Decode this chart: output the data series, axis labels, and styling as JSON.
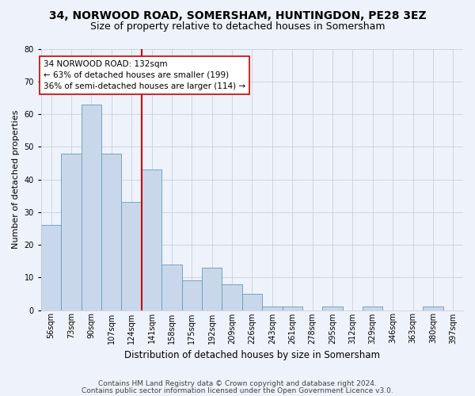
{
  "title_line1": "34, NORWOOD ROAD, SOMERSHAM, HUNTINGDON, PE28 3EZ",
  "title_line2": "Size of property relative to detached houses in Somersham",
  "xlabel": "Distribution of detached houses by size in Somersham",
  "ylabel": "Number of detached properties",
  "bar_labels": [
    "56sqm",
    "73sqm",
    "90sqm",
    "107sqm",
    "124sqm",
    "141sqm",
    "158sqm",
    "175sqm",
    "192sqm",
    "209sqm",
    "226sqm",
    "243sqm",
    "261sqm",
    "278sqm",
    "295sqm",
    "312sqm",
    "329sqm",
    "346sqm",
    "363sqm",
    "380sqm",
    "397sqm"
  ],
  "bar_values": [
    26,
    48,
    63,
    48,
    33,
    43,
    14,
    9,
    13,
    8,
    5,
    1,
    1,
    0,
    1,
    0,
    1,
    0,
    0,
    1,
    0
  ],
  "bar_color": "#c8d8ea",
  "bar_edge_color": "#6699bb",
  "vline_color": "#cc0000",
  "annotation_text": "34 NORWOOD ROAD: 132sqm\n← 63% of detached houses are smaller (199)\n36% of semi-detached houses are larger (114) →",
  "annotation_box_color": "white",
  "annotation_box_edge": "#cc0000",
  "ylim": [
    0,
    80
  ],
  "yticks": [
    0,
    10,
    20,
    30,
    40,
    50,
    60,
    70,
    80
  ],
  "grid_color": "#c8d0e0",
  "footer_line1": "Contains HM Land Registry data © Crown copyright and database right 2024.",
  "footer_line2": "Contains public sector information licensed under the Open Government Licence v3.0.",
  "bg_color": "#eef2fa",
  "title_fontsize": 10,
  "subtitle_fontsize": 9,
  "xlabel_fontsize": 8.5,
  "ylabel_fontsize": 8,
  "tick_fontsize": 7,
  "annotation_fontsize": 7.5,
  "footer_fontsize": 6.5
}
